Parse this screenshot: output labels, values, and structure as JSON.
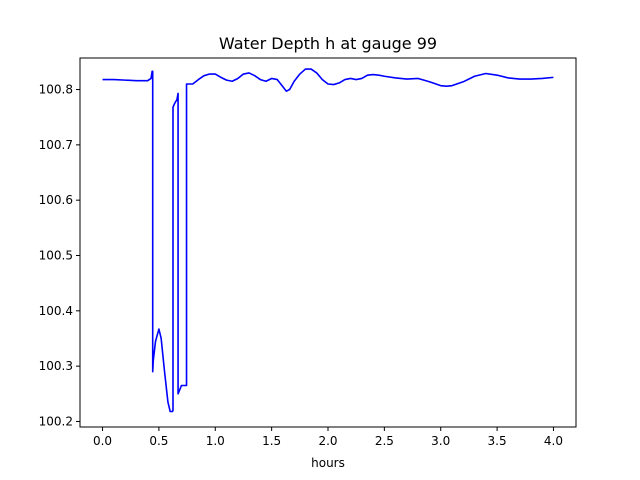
{
  "chart_data": {
    "type": "line",
    "title": "Water Depth h at gauge 99",
    "xlabel": "hours",
    "ylabel": "",
    "xlim": [
      -0.2,
      4.2
    ],
    "ylim": [
      100.19,
      100.857
    ],
    "xticks": [
      "0.0",
      "0.5",
      "1.0",
      "1.5",
      "2.0",
      "2.5",
      "3.0",
      "3.5",
      "4.0"
    ],
    "yticks": [
      "100.2",
      "100.3",
      "100.4",
      "100.5",
      "100.6",
      "100.7",
      "100.8"
    ],
    "grid": false,
    "series": [
      {
        "color": "#0000ff",
        "x": [
          0.0,
          0.1,
          0.2,
          0.3,
          0.4,
          0.43,
          0.44,
          0.445,
          0.445,
          0.45,
          0.47,
          0.5,
          0.52,
          0.55,
          0.58,
          0.6,
          0.62,
          0.625,
          0.625,
          0.64,
          0.66,
          0.67,
          0.67,
          0.69,
          0.7,
          0.72,
          0.74,
          0.745,
          0.745,
          0.77,
          0.8,
          0.85,
          0.9,
          0.95,
          1.0,
          1.05,
          1.1,
          1.15,
          1.2,
          1.25,
          1.3,
          1.35,
          1.4,
          1.45,
          1.5,
          1.55,
          1.6,
          1.63,
          1.66,
          1.7,
          1.75,
          1.8,
          1.85,
          1.9,
          1.95,
          2.0,
          2.05,
          2.1,
          2.15,
          2.2,
          2.25,
          2.3,
          2.35,
          2.4,
          2.45,
          2.5,
          2.6,
          2.7,
          2.8,
          2.9,
          3.0,
          3.05,
          3.1,
          3.2,
          3.3,
          3.4,
          3.5,
          3.6,
          3.7,
          3.8,
          3.9,
          4.0
        ],
        "y": [
          100.818,
          100.818,
          100.817,
          100.816,
          100.816,
          100.82,
          100.833,
          100.833,
          100.29,
          100.31,
          100.345,
          100.367,
          100.35,
          100.29,
          100.235,
          100.218,
          100.218,
          100.22,
          100.768,
          100.775,
          100.782,
          100.793,
          100.25,
          100.26,
          100.265,
          100.265,
          100.265,
          100.265,
          100.81,
          100.81,
          100.81,
          100.818,
          100.825,
          100.828,
          100.828,
          100.822,
          100.817,
          100.815,
          100.82,
          100.828,
          100.83,
          100.825,
          100.818,
          100.815,
          100.82,
          100.818,
          100.805,
          100.797,
          100.8,
          100.815,
          100.828,
          100.837,
          100.837,
          100.83,
          100.818,
          100.81,
          100.809,
          100.812,
          100.818,
          100.82,
          100.818,
          100.82,
          100.826,
          100.827,
          100.826,
          100.824,
          100.821,
          100.819,
          100.82,
          100.814,
          100.807,
          100.806,
          100.807,
          100.814,
          100.824,
          100.829,
          100.826,
          100.821,
          100.819,
          100.819,
          100.82,
          100.822
        ]
      }
    ]
  }
}
